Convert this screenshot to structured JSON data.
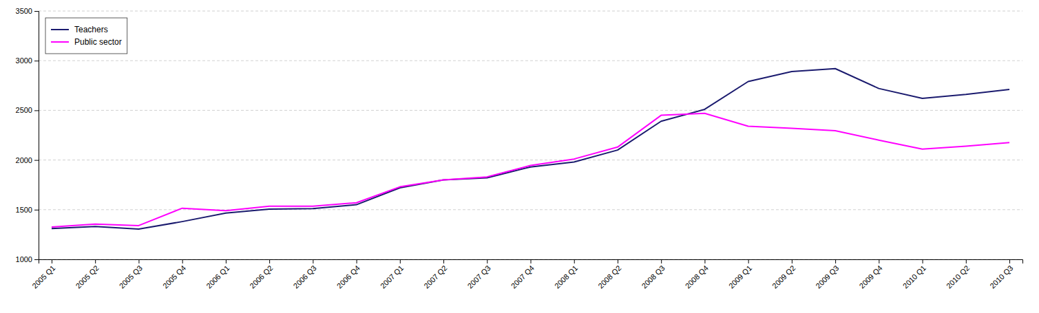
{
  "chart_data": {
    "type": "line",
    "categories": [
      "2005 Q1",
      "2005 Q2",
      "2005 Q3",
      "2005 Q4",
      "2006 Q1",
      "2006 Q2",
      "2006 Q3",
      "2006 Q4",
      "2007 Q1",
      "2007 Q2",
      "2007 Q3",
      "2007 Q4",
      "2008 Q1",
      "2008 Q2",
      "2008 Q3",
      "2008 Q4",
      "2009 Q1",
      "2009 Q2",
      "2009 Q3",
      "2009 Q4",
      "2010 Q1",
      "2010 Q2",
      "2010 Q3"
    ],
    "series": [
      {
        "name": "Teachers",
        "color": "#1a1a6e",
        "values": [
          1310,
          1330,
          1305,
          1380,
          1465,
          1505,
          1510,
          1550,
          1720,
          1800,
          1820,
          1930,
          1980,
          2100,
          2390,
          2510,
          2790,
          2890,
          2920,
          2720,
          2620,
          2660,
          2710
        ]
      },
      {
        "name": "Public sector",
        "color": "#ff00ff",
        "values": [
          1325,
          1355,
          1340,
          1515,
          1490,
          1535,
          1535,
          1570,
          1730,
          1800,
          1830,
          1945,
          2010,
          2130,
          2450,
          2470,
          2340,
          2320,
          2295,
          2200,
          2110,
          2140,
          2175
        ]
      }
    ],
    "ylim": [
      1000,
      3500
    ],
    "yticks": [
      1000,
      1500,
      2000,
      2500,
      3000,
      3500
    ],
    "grid": true,
    "legend": "upper left"
  }
}
